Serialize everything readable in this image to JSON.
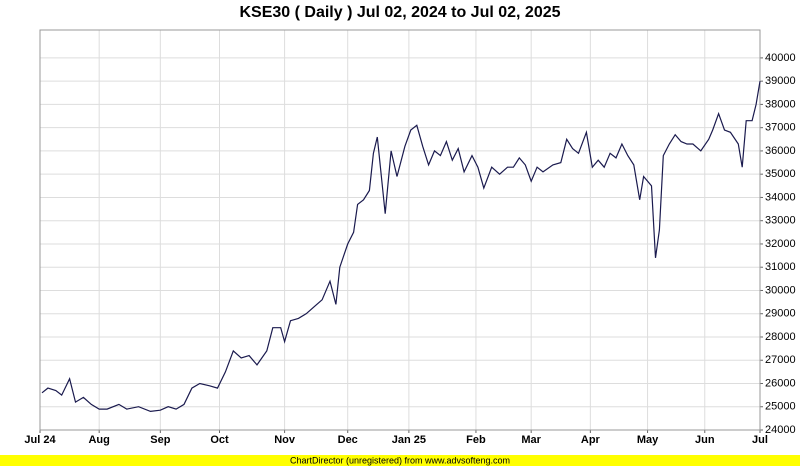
{
  "chart_data": {
    "type": "line",
    "title": "KSE30 ( Daily ) Jul 02, 2024 to Jul 02, 2025",
    "footer": "ChartDirector (unregistered) from www.advsofteng.com",
    "x": [
      1,
      4,
      8,
      11,
      15,
      18,
      22,
      26,
      30,
      34,
      40,
      44,
      50,
      56,
      61,
      65,
      69,
      73,
      77,
      81,
      86,
      90,
      94,
      98,
      102,
      106,
      110,
      115,
      118,
      122,
      124,
      127,
      131,
      135,
      139,
      143,
      147,
      150,
      152,
      156,
      159,
      161,
      164,
      167,
      169,
      171,
      175,
      178,
      181,
      185,
      188,
      191,
      194,
      197,
      200,
      203,
      206,
      209,
      212,
      215,
      219,
      222,
      225,
      229,
      233,
      237,
      240,
      243,
      246,
      249,
      252,
      255,
      260,
      264,
      267,
      270,
      273,
      277,
      280,
      283,
      286,
      289,
      292,
      295,
      298,
      301,
      304,
      306,
      310,
      312,
      314,
      316,
      319,
      322,
      325,
      328,
      331,
      335,
      339,
      341,
      344,
      347,
      350,
      354,
      356,
      358,
      361,
      363,
      365
    ],
    "series": [
      {
        "name": "KSE30",
        "color": "#1a1a4e",
        "values": [
          25600,
          25800,
          25700,
          25500,
          26200,
          25200,
          25400,
          25100,
          24900,
          24900,
          25100,
          24900,
          25000,
          24800,
          24850,
          25000,
          24900,
          25100,
          25800,
          26000,
          25900,
          25800,
          26500,
          27400,
          27100,
          27200,
          26800,
          27400,
          28400,
          28400,
          27800,
          28700,
          28800,
          29000,
          29300,
          29600,
          30400,
          29400,
          31000,
          32000,
          32500,
          33700,
          33900,
          34300,
          35900,
          36600,
          33300,
          36000,
          34900,
          36200,
          36900,
          37100,
          36200,
          35400,
          36000,
          35800,
          36400,
          35600,
          36100,
          35100,
          35800,
          35300,
          34400,
          35300,
          35000,
          35300,
          35300,
          35700,
          35400,
          34700,
          35300,
          35100,
          35400,
          35500,
          36500,
          36100,
          35900,
          36800,
          35300,
          35600,
          35300,
          35900,
          35700,
          36300,
          35800,
          35400,
          33900,
          34900,
          34500,
          31400,
          32600,
          35800,
          36300,
          36700,
          36400,
          36300,
          36300,
          36000,
          36500,
          36900,
          37600,
          36900,
          36800,
          36300,
          35300,
          37300,
          37300,
          38000,
          39000
        ]
      }
    ],
    "xlim": [
      0,
      365
    ],
    "xticks": [
      {
        "value": 0,
        "label": "Jul 24"
      },
      {
        "value": 30,
        "label": "Aug"
      },
      {
        "value": 61,
        "label": "Sep"
      },
      {
        "value": 91,
        "label": "Oct"
      },
      {
        "value": 124,
        "label": "Nov"
      },
      {
        "value": 156,
        "label": "Dec"
      },
      {
        "value": 187,
        "label": "Jan 25"
      },
      {
        "value": 221,
        "label": "Feb"
      },
      {
        "value": 249,
        "label": "Mar"
      },
      {
        "value": 279,
        "label": "Apr"
      },
      {
        "value": 308,
        "label": "May"
      },
      {
        "value": 337,
        "label": "Jun"
      },
      {
        "value": 365,
        "label": "Jul"
      }
    ],
    "ylim": [
      24000,
      41200
    ],
    "yticks": [
      24000,
      25000,
      26000,
      27000,
      28000,
      29000,
      30000,
      31000,
      32000,
      33000,
      34000,
      35000,
      36000,
      37000,
      38000,
      39000,
      40000
    ],
    "grid": true
  }
}
